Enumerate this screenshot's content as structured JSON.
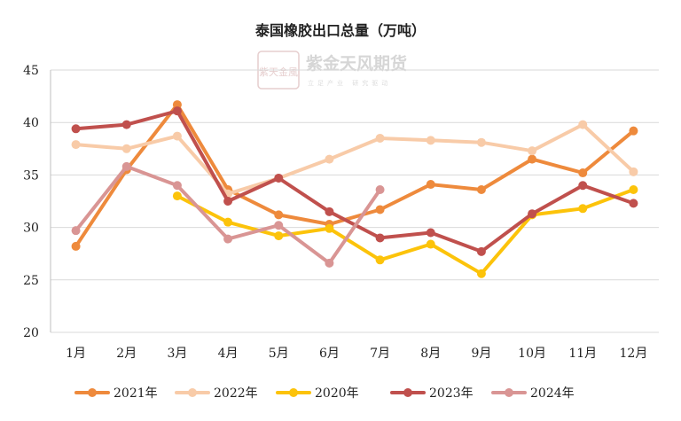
{
  "watermark": {
    "name": "紫金天风期货",
    "subtitle": "立足产业 研究驱动",
    "seal_text": "紫天金風"
  },
  "chart_data": {
    "type": "line",
    "title": "泰国橡胶出口总量（万吨）",
    "xlabel": "",
    "ylabel": "",
    "categories": [
      "1月",
      "2月",
      "3月",
      "4月",
      "5月",
      "6月",
      "7月",
      "8月",
      "9月",
      "10月",
      "11月",
      "12月"
    ],
    "ylim": [
      20,
      45
    ],
    "yticks": [
      20,
      25,
      30,
      35,
      40,
      45
    ],
    "grid": true,
    "legend_position": "bottom",
    "series": [
      {
        "name": "2021年",
        "color": "#EE8A3C",
        "values": [
          28.2,
          35.5,
          41.7,
          33.6,
          31.2,
          30.3,
          31.7,
          34.1,
          33.6,
          36.5,
          35.2,
          39.2
        ]
      },
      {
        "name": "2022年",
        "color": "#F8CBA8",
        "values": [
          37.9,
          37.5,
          38.7,
          33.2,
          34.7,
          36.5,
          38.5,
          38.3,
          38.1,
          37.3,
          39.8,
          35.3
        ]
      },
      {
        "name": "2020年",
        "color": "#FCC30A",
        "values": [
          null,
          null,
          33.0,
          30.5,
          29.2,
          29.9,
          26.9,
          28.4,
          25.6,
          31.2,
          31.8,
          33.6
        ]
      },
      {
        "name": "2023年",
        "color": "#C0504D",
        "values": [
          39.4,
          39.8,
          41.1,
          32.5,
          34.7,
          31.5,
          29.0,
          29.5,
          27.7,
          31.3,
          34.0,
          32.3
        ]
      },
      {
        "name": "2024年",
        "color": "#D99594",
        "values": [
          29.7,
          35.8,
          34.0,
          28.9,
          30.2,
          26.6,
          33.6,
          null,
          null,
          null,
          null,
          null
        ]
      }
    ]
  }
}
